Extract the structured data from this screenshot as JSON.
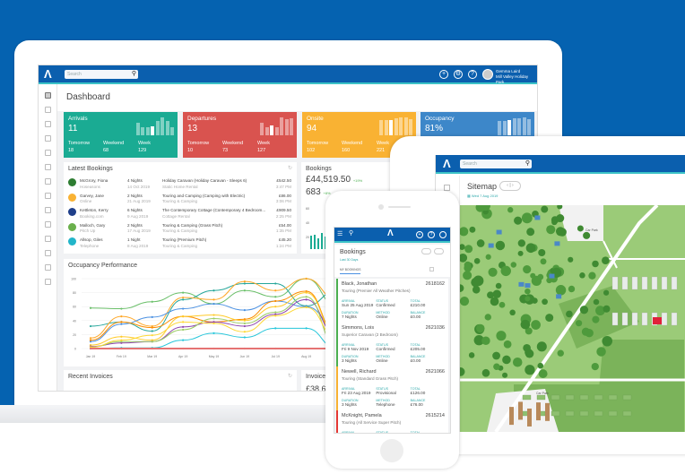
{
  "colors": {
    "brand": "#0b5fae",
    "accent": "#3cc3c7",
    "arrivals": "#1aab93",
    "departures": "#d9534f",
    "onsite": "#f9b233",
    "occupancy": "#3d87c9"
  },
  "dashboard": {
    "search_placeholder": "Search",
    "user": {
      "name": "Gemma Laird",
      "park": "Mill Valley Holiday Park"
    },
    "title": "Dashboard",
    "cards": [
      {
        "label": "Arrivals",
        "value": "11",
        "tomorrow_label": "Tomorrow",
        "tomorrow": "18",
        "weekend_label": "Weekend",
        "weekend": "68",
        "week_label": "Week",
        "week": "129"
      },
      {
        "label": "Departures",
        "value": "13",
        "tomorrow_label": "Tomorrow",
        "tomorrow": "10",
        "weekend_label": "Weekend",
        "weekend": "73",
        "week_label": "Week",
        "week": "127"
      },
      {
        "label": "Onsite",
        "value": "94",
        "tomorrow_label": "Tomorrow",
        "tomorrow": "102",
        "weekend_label": "Weekend",
        "weekend": "160",
        "week_label": "Week",
        "week": "221"
      },
      {
        "label": "Occupancy",
        "value": "81%"
      }
    ],
    "latest_bookings": {
      "title": "Latest Bookings",
      "rows": [
        {
          "name": "McGrory, Fiona",
          "source": "Hoseasons",
          "nights": "4 Nights",
          "date": "14 Oct 2019",
          "unit": "Holiday Caravan (Holiday Caravan - Sleeps 6)",
          "type": "Static Home Rental",
          "amount": "£542.50",
          "time": "3:47 PM",
          "icon": "hoseasons-icon",
          "color": "#2e7d32"
        },
        {
          "name": "Garvey, Jane",
          "source": "Online",
          "nights": "2 Nights",
          "date": "21 Aug 2019",
          "unit": "Touring and Camping (Camping with Electric)",
          "type": "Touring & Camping",
          "amount": "£86.00",
          "time": "3:06 PM",
          "icon": "online-icon",
          "color": "#f9b233"
        },
        {
          "name": "Kettleton, Kerry",
          "source": "Booking.com",
          "nights": "6 Nights",
          "date": "9 Aug 2019",
          "unit": "The Contemporary Cottage (Contemporary 4 Bedroom...",
          "type": "Cottage Rental",
          "amount": "£909.50",
          "time": "2:25 PM",
          "icon": "booking-com-icon",
          "color": "#1f3f8a"
        },
        {
          "name": "Malloch, Gary",
          "source": "Pitch Up",
          "nights": "2 Nights",
          "date": "17 Aug 2019",
          "unit": "Touring & Camping (Grass Pitch)",
          "type": "Touring & Camping",
          "amount": "£54.00",
          "time": "1:35 PM",
          "icon": "pitchup-icon",
          "color": "#6ab04c"
        },
        {
          "name": "Allsop, Giles",
          "source": "Telephone",
          "nights": "1 Night",
          "date": "8 Aug 2019",
          "unit": "Touring (Premium Pitch)",
          "type": "Touring & Camping",
          "amount": "£45.20",
          "time": "1:24 PM",
          "icon": "telephone-icon",
          "color": "#22b5c9"
        }
      ]
    },
    "bookings": {
      "title": "Bookings",
      "amount": "£44,519.50",
      "amount_change": "+19%",
      "count": "683",
      "count_change": "+8%",
      "ticks": [
        "60",
        "40",
        "20",
        "0"
      ]
    },
    "occupancy_title": "Occupancy Performance",
    "recent_invoices": {
      "title": "Recent Invoices"
    },
    "invoices": {
      "title": "Invoices",
      "amount": "£38,6"
    }
  },
  "chart_data": {
    "type": "line",
    "title": "Occupancy Performance",
    "categories": [
      "Jan 19",
      "Feb 19",
      "Mar 19",
      "Apr 19",
      "May 19",
      "Jun 19",
      "Jul 19",
      "Aug 19",
      "Sep 19"
    ],
    "ylim": [
      0,
      100
    ],
    "yticks": [
      "100",
      "80",
      "60",
      "40",
      "20",
      "0"
    ],
    "grid": true,
    "series": [
      {
        "color": "#6abf69",
        "values": [
          58,
          57,
          67,
          80,
          64,
          83,
          74,
          100,
          60
        ]
      },
      {
        "color": "#26a69a",
        "values": [
          32,
          38,
          25,
          70,
          83,
          93,
          93,
          61,
          83
        ]
      },
      {
        "color": "#ffa726",
        "values": [
          15,
          46,
          32,
          73,
          70,
          96,
          83,
          100,
          70
        ]
      },
      {
        "color": "#4a90e2",
        "values": [
          10,
          35,
          45,
          57,
          64,
          55,
          68,
          60,
          30
        ]
      },
      {
        "color": "#fb8c00",
        "values": [
          12,
          38,
          30,
          46,
          38,
          42,
          68,
          82,
          20
        ]
      },
      {
        "color": "#ffca28",
        "values": [
          5,
          17,
          12,
          46,
          48,
          40,
          60,
          80,
          18
        ]
      },
      {
        "color": "#8e44ad",
        "values": [
          3,
          8,
          10,
          31,
          38,
          32,
          49,
          70,
          18
        ]
      },
      {
        "color": "#9ccc65",
        "values": [
          2,
          10,
          10,
          27,
          43,
          36,
          52,
          74,
          2
        ]
      },
      {
        "color": "#fdd835",
        "values": [
          2,
          12,
          19,
          38,
          36,
          24,
          47,
          59,
          15
        ]
      },
      {
        "color": "#26c6da",
        "values": [
          0,
          1,
          1,
          12,
          22,
          16,
          29,
          29,
          0
        ]
      },
      {
        "color": "#e57373",
        "values": [
          0,
          0,
          0,
          0,
          0,
          0,
          0,
          0,
          0
        ]
      }
    ]
  },
  "phone": {
    "title": "Bookings",
    "filter": "Last 30 Days",
    "tab": "MY BOOKINGS",
    "bookings": [
      {
        "name": "Black, Jonathan",
        "id": "2618162",
        "unit": "Touring (Premier All Weather Pitches)",
        "arrival": "Sun 25 Aug 2019",
        "status": "Confirmed",
        "total": "£210.00",
        "duration": "7 Nights",
        "method": "Online",
        "balance": "£0.00",
        "color": "#4caf50"
      },
      {
        "name": "Simmons, Lois",
        "id": "2621036",
        "unit": "Superior Caravan (2 Bedroom)",
        "arrival": "Fri 9 Nov 2019",
        "status": "Confirmed",
        "total": "£205.00",
        "duration": "3 Nights",
        "method": "Online",
        "balance": "£0.00",
        "color": "#4caf50"
      },
      {
        "name": "Newell, Richard",
        "id": "2621066",
        "unit": "Touring (Standard Grass Pitch)",
        "arrival": "Fri 23 Aug 2019",
        "status": "Provisional",
        "total": "£126.00",
        "duration": "3 Nights",
        "method": "Telephone",
        "balance": "£76.00",
        "color": "#f9b233"
      },
      {
        "name": "McKnight, Pamela",
        "id": "2615214",
        "unit": "Touring (All Service Super Pitch)",
        "arrival": "",
        "status": "",
        "total": "",
        "duration": "",
        "method": "",
        "balance": "",
        "color": "#e53935"
      }
    ],
    "labels": {
      "arrival": "ARRIVAL",
      "status": "STATUS",
      "total": "TOTAL",
      "duration": "DURATION",
      "method": "METHOD",
      "balance": "BALANCE"
    }
  },
  "tablet": {
    "search_placeholder": "Search",
    "title": "Sitemap",
    "date": "Wed 7 Aug 2019",
    "map_labels": [
      "Car Park",
      "Car Park"
    ]
  }
}
